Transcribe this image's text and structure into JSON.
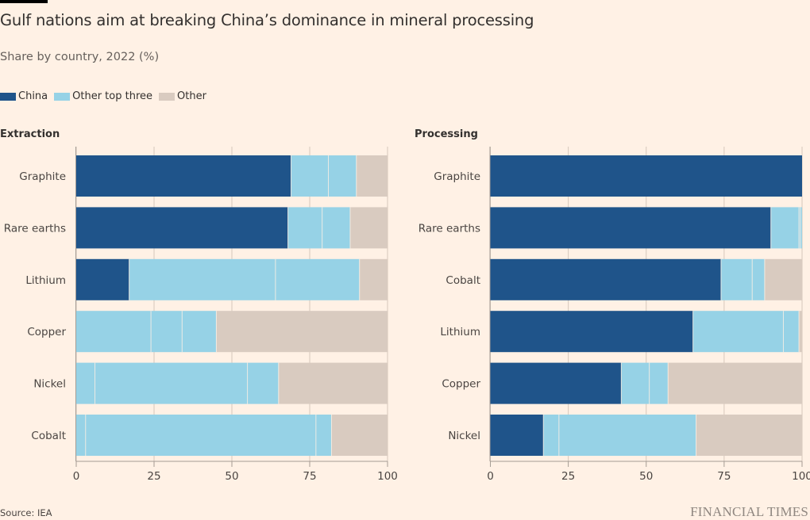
{
  "header": {
    "title": "Gulf nations aim at breaking China’s dominance in mineral processing",
    "subtitle": "Share by country, 2022 (%)"
  },
  "legend": [
    {
      "label": "China",
      "color": "#1f548a"
    },
    {
      "label": "Other top three",
      "color": "#96d2e6"
    },
    {
      "label": "Other",
      "color": "#d9cbc0"
    }
  ],
  "footer": {
    "source": "Source: IEA",
    "brand": "FINANCIAL TIMES"
  },
  "chart_data": [
    {
      "type": "bar",
      "orientation": "horizontal-stacked",
      "title": "Extraction",
      "xlabel": "",
      "ylabel": "",
      "xlim": [
        0,
        100
      ],
      "xticks": [
        0,
        25,
        50,
        75,
        100
      ],
      "grid": true,
      "categories": [
        "Graphite",
        "Rare earths",
        "Lithium",
        "Copper",
        "Nickel",
        "Cobalt"
      ],
      "series": [
        {
          "name": "China",
          "values": [
            69,
            68,
            17,
            0,
            0,
            0
          ]
        },
        {
          "name": "Other top three",
          "values": [
            [
              12,
              9
            ],
            [
              11,
              9
            ],
            [
              47,
              27
            ],
            [
              24,
              10,
              11
            ],
            [
              6,
              49,
              10
            ],
            [
              3,
              74,
              5
            ]
          ]
        },
        {
          "name": "Other",
          "values": [
            10,
            12,
            9,
            55,
            35,
            18
          ]
        }
      ]
    },
    {
      "type": "bar",
      "orientation": "horizontal-stacked",
      "title": "Processing",
      "xlabel": "",
      "ylabel": "",
      "xlim": [
        0,
        100
      ],
      "xticks": [
        0,
        25,
        50,
        75,
        100
      ],
      "grid": true,
      "categories": [
        "Graphite",
        "Rare earths",
        "Cobalt",
        "Lithium",
        "Copper",
        "Nickel"
      ],
      "series": [
        {
          "name": "China",
          "values": [
            100,
            90,
            74,
            65,
            42,
            17
          ]
        },
        {
          "name": "Other top three",
          "values": [
            [],
            [
              9,
              0.5,
              0.5
            ],
            [
              10,
              4
            ],
            [
              29,
              5
            ],
            [
              9,
              6
            ],
            [
              5,
              44
            ]
          ]
        },
        {
          "name": "Other",
          "values": [
            0,
            0,
            12,
            1,
            43,
            34
          ]
        }
      ]
    }
  ]
}
